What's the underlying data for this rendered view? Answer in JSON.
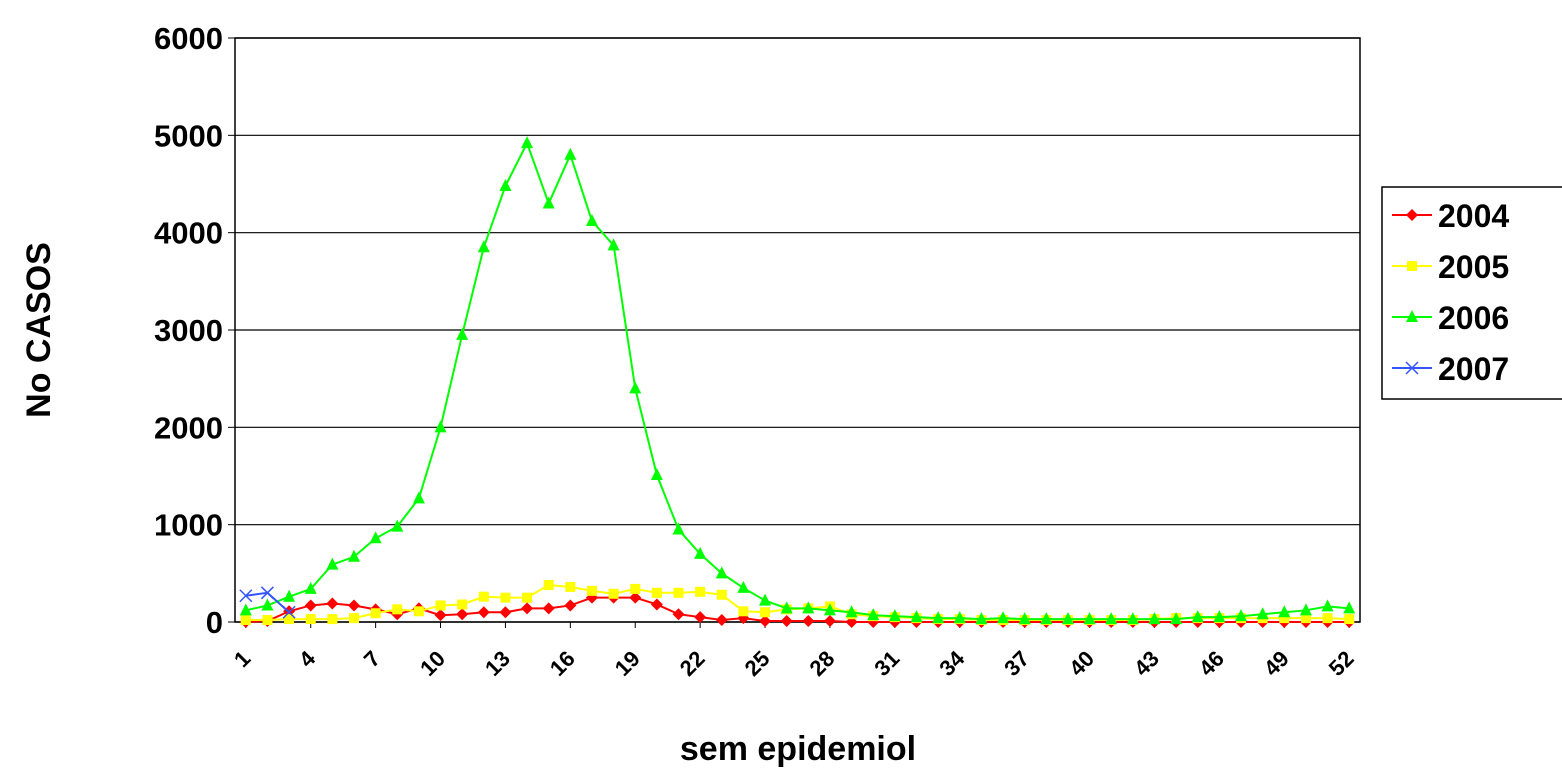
{
  "chart_data": {
    "type": "line",
    "x_label": "sem epidemiol",
    "y_label": "No CASOS",
    "x": [
      1,
      2,
      3,
      4,
      5,
      6,
      7,
      8,
      9,
      10,
      11,
      12,
      13,
      14,
      15,
      16,
      17,
      18,
      19,
      20,
      21,
      22,
      23,
      24,
      25,
      26,
      27,
      28,
      29,
      30,
      31,
      32,
      33,
      34,
      35,
      36,
      37,
      38,
      39,
      40,
      41,
      42,
      43,
      44,
      45,
      46,
      47,
      48,
      49,
      50,
      51,
      52
    ],
    "xlim": [
      0.5,
      52.5
    ],
    "xticks": [
      1,
      4,
      7,
      10,
      13,
      16,
      19,
      22,
      25,
      28,
      31,
      34,
      37,
      40,
      43,
      46,
      49,
      52
    ],
    "ylim": [
      0,
      6000
    ],
    "yticks": [
      0,
      1000,
      2000,
      3000,
      4000,
      5000,
      6000
    ],
    "grid": true,
    "legend": "right",
    "series": [
      {
        "name": "2004",
        "color": "#ff0000",
        "marker": "diamond",
        "values": [
          0,
          10,
          110,
          170,
          190,
          170,
          130,
          80,
          140,
          70,
          80,
          100,
          100,
          140,
          140,
          170,
          250,
          250,
          250,
          180,
          80,
          50,
          20,
          40,
          10,
          10,
          10,
          10,
          0,
          0,
          0,
          0,
          0,
          0,
          0,
          0,
          0,
          0,
          0,
          0,
          0,
          0,
          0,
          0,
          0,
          0,
          0,
          0,
          0,
          0,
          0,
          0
        ]
      },
      {
        "name": "2005",
        "color": "#ffff00",
        "marker": "square",
        "values": [
          20,
          20,
          30,
          30,
          30,
          40,
          90,
          130,
          110,
          170,
          180,
          260,
          250,
          250,
          380,
          360,
          320,
          290,
          340,
          300,
          300,
          310,
          280,
          110,
          100,
          130,
          140,
          160,
          80,
          60,
          50,
          40,
          30,
          30,
          20,
          20,
          20,
          20,
          20,
          20,
          20,
          20,
          30,
          40,
          40,
          40,
          40,
          40,
          40,
          40,
          40,
          30
        ]
      },
      {
        "name": "2006",
        "color": "#00ff00",
        "marker": "triangle",
        "values": [
          120,
          170,
          260,
          340,
          590,
          670,
          860,
          980,
          1270,
          2000,
          2950,
          3850,
          4480,
          4920,
          4300,
          4800,
          4120,
          3870,
          2400,
          1510,
          950,
          700,
          500,
          350,
          220,
          140,
          140,
          120,
          100,
          70,
          60,
          50,
          40,
          40,
          30,
          40,
          30,
          30,
          30,
          30,
          30,
          30,
          30,
          30,
          50,
          50,
          60,
          80,
          100,
          120,
          160,
          140
        ]
      },
      {
        "name": "2007",
        "color": "#3355ff",
        "marker": "x",
        "values": [
          270,
          300,
          100,
          null,
          null,
          null,
          null,
          null,
          null,
          null,
          null,
          null,
          null,
          null,
          null,
          null,
          null,
          null,
          null,
          null,
          null,
          null,
          null,
          null,
          null,
          null,
          null,
          null,
          null,
          null,
          null,
          null,
          null,
          null,
          null,
          null,
          null,
          null,
          null,
          null,
          null,
          null,
          null,
          null,
          null,
          null,
          null,
          null,
          null,
          null,
          null,
          null
        ]
      }
    ]
  }
}
